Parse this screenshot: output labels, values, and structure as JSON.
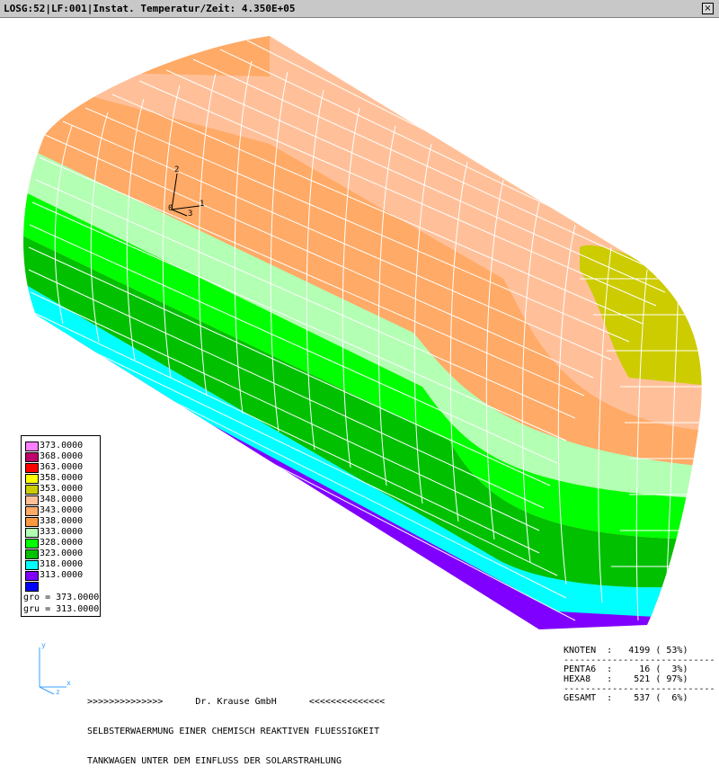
{
  "window": {
    "title": "LOSG:52|LF:001|Instat. Temperatur/Zeit: 4.350E+05",
    "close_glyph": "×"
  },
  "model": {
    "triad_labels": [
      "1",
      "2",
      "3",
      "0"
    ],
    "band_colors": [
      "#7f00ff",
      "#00ffff",
      "#00c000",
      "#00ff00",
      "#b3ffb3",
      "#ffaa66",
      "#ffc099",
      "#cccc00"
    ]
  },
  "legend": {
    "entries": [
      {
        "value": "373.0000",
        "color": "#ff80ff"
      },
      {
        "value": "368.0000",
        "color": "#c0006b"
      },
      {
        "value": "363.0000",
        "color": "#ff0000"
      },
      {
        "value": "358.0000",
        "color": "#ffff00"
      },
      {
        "value": "353.0000",
        "color": "#cccc00"
      },
      {
        "value": "348.0000",
        "color": "#ffc099"
      },
      {
        "value": "343.0000",
        "color": "#ffaa66"
      },
      {
        "value": "338.0000",
        "color": "#ff9a40"
      },
      {
        "value": "333.0000",
        "color": "#b3ffb3"
      },
      {
        "value": "328.0000",
        "color": "#00ff00"
      },
      {
        "value": "323.0000",
        "color": "#00c000"
      },
      {
        "value": "318.0000",
        "color": "#00ffff"
      },
      {
        "value": "313.0000",
        "color": "#7f00ff"
      },
      {
        "value": "",
        "color": "#0000ff"
      }
    ],
    "gro": "gro = 373.0000",
    "gru": "gru = 313.0000"
  },
  "axes_small": {
    "x": "x",
    "y": "y",
    "z": "z"
  },
  "footer": {
    "line1": ">>>>>>>>>>>>>>      Dr. Krause GmbH      <<<<<<<<<<<<<<",
    "line2": "SELBSTERWAERMUNG EINER CHEMISCH REAKTIVEN FLUESSIGKEIT",
    "line3": "TANKWAGEN UNTER DEM EINFLUSS DER SOLARSTRAHLUNG"
  },
  "stats": {
    "knoten": "KNOTEN  :   4199 ( 53%)",
    "sep1": "------------------------------",
    "penta6": "PENTA6  :     16 (  3%)",
    "hexa8": "HEXA8   :    521 ( 97%)",
    "sep2": "------------------------------",
    "gesamt": "GESAMT  :    537 (  6%)"
  }
}
